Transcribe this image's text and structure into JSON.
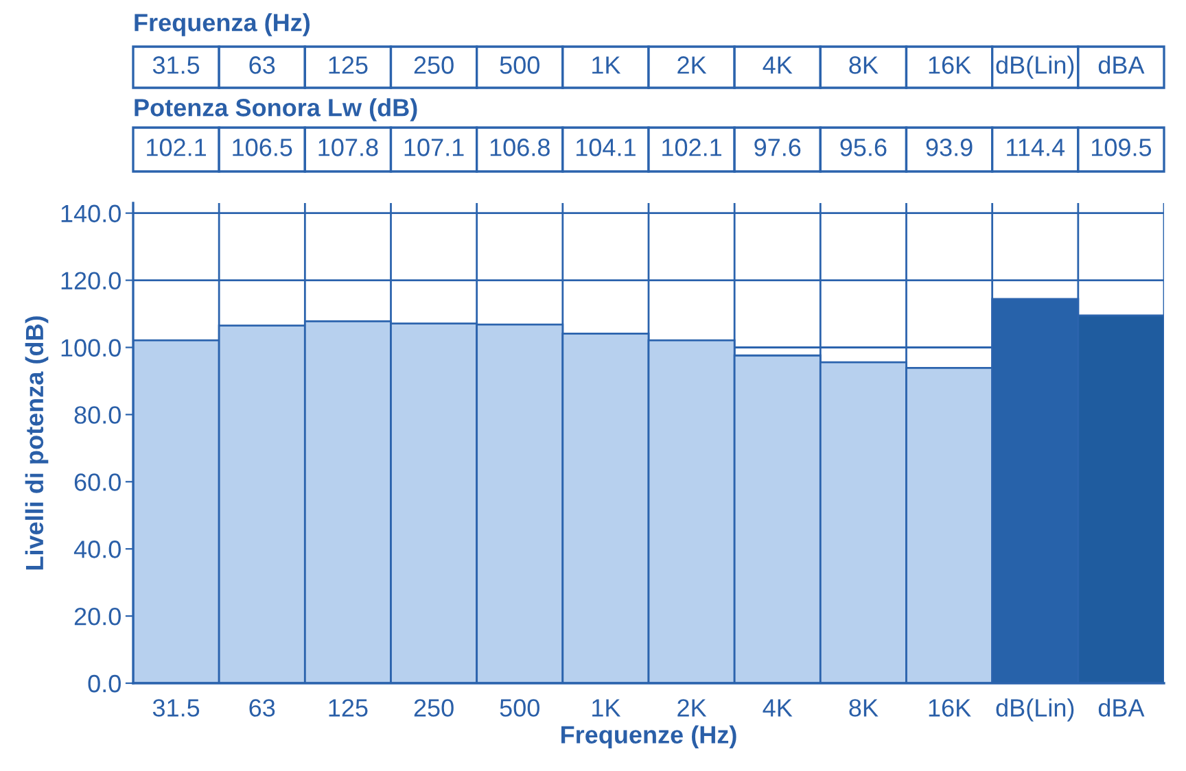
{
  "chart_data": {
    "type": "bar",
    "categories": [
      "31.5",
      "63",
      "125",
      "250",
      "500",
      "1K",
      "2K",
      "4K",
      "8K",
      "16K",
      "dB(Lin)",
      "dBA"
    ],
    "values": [
      102.1,
      106.5,
      107.8,
      107.1,
      106.8,
      104.1,
      102.1,
      97.6,
      95.6,
      93.9,
      114.4,
      109.5
    ],
    "colors": [
      "#b7d0ee",
      "#b7d0ee",
      "#b7d0ee",
      "#b7d0ee",
      "#b7d0ee",
      "#b7d0ee",
      "#b7d0ee",
      "#b7d0ee",
      "#b7d0ee",
      "#b7d0ee",
      "#2762aa",
      "#1f5c9f"
    ],
    "data_labels": true,
    "xlabel": "Frequenze (Hz)",
    "ylabel": "Livelli di potenza (dB)",
    "annotations": [
      "Frequenza (Hz)",
      "Potenza Sonora Lw (dB)"
    ],
    "ylim": [
      0,
      143
    ],
    "yticks": [
      {
        "value": 0,
        "label": "0.0"
      },
      {
        "value": 20,
        "label": "20.0"
      },
      {
        "value": 40,
        "label": "40.0"
      },
      {
        "value": 60,
        "label": "60.0"
      },
      {
        "value": 80,
        "label": "80.0"
      },
      {
        "value": 100,
        "label": "100.0"
      },
      {
        "value": 120,
        "label": "120.0"
      },
      {
        "value": 140,
        "label": "140.0"
      }
    ],
    "grid": true
  }
}
